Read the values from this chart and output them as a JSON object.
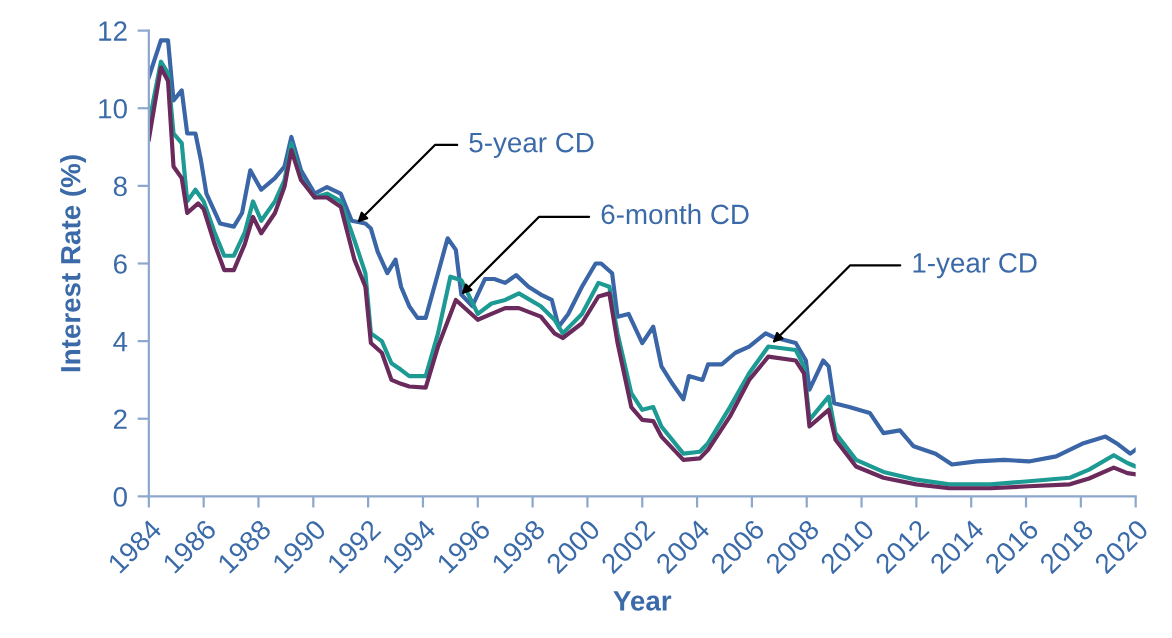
{
  "chart_data": {
    "type": "line",
    "xlabel": "Year",
    "ylabel": "Interest Rate (%)",
    "xlim": [
      1984,
      2020
    ],
    "xticks": [
      1984,
      1986,
      1988,
      1990,
      1992,
      1994,
      1996,
      1998,
      2000,
      2002,
      2004,
      2006,
      2008,
      2010,
      2012,
      2014,
      2016,
      2018,
      2020
    ],
    "ylim": [
      0,
      12
    ],
    "yticks": [
      0,
      2,
      4,
      6,
      8,
      10,
      12
    ],
    "grid": false,
    "marker": "none",
    "line_style": "solid",
    "series": [
      {
        "color": "#3a66a8",
        "x": [
          1984.0,
          1984.44,
          1984.7,
          1984.9,
          1985.2,
          1985.4,
          1985.7,
          1985.9,
          1986.1,
          1986.6,
          1987.1,
          1987.4,
          1987.7,
          1988.1,
          1988.6,
          1988.95,
          1989.2,
          1989.55,
          1990.05,
          1990.5,
          1991.0,
          1991.4,
          1991.9,
          1992.1,
          1992.35,
          1992.7,
          1993.0,
          1993.2,
          1993.5,
          1993.8,
          1994.1,
          1994.55,
          1994.9,
          1995.2,
          1995.4,
          1995.8,
          1996.26,
          1996.6,
          1997.0,
          1997.4,
          1997.85,
          1998.3,
          1998.7,
          1998.95,
          1999.3,
          1999.8,
          2000.3,
          2000.5,
          2000.9,
          2001.1,
          2001.5,
          2002.0,
          2002.4,
          2002.7,
          2003.1,
          2003.5,
          2003.7,
          2004.2,
          2004.4,
          2004.9,
          2005.4,
          2005.9,
          2006.5,
          2006.8,
          2007.6,
          2007.97,
          2008.1,
          2008.6,
          2008.8,
          2009.0,
          2009.55,
          2010.3,
          2010.8,
          2011.4,
          2011.9,
          2012.7,
          2013.3,
          2014.2,
          2015.2,
          2016.1,
          2017.1,
          2018.1,
          2018.9,
          2019.3,
          2019.8,
          2020.0
        ],
        "values": [
          10.8,
          11.75,
          11.75,
          10.2,
          10.46,
          9.35,
          9.35,
          8.66,
          7.8,
          7.03,
          6.95,
          7.3,
          8.4,
          7.9,
          8.2,
          8.5,
          9.26,
          8.4,
          7.8,
          7.97,
          7.8,
          7.1,
          7.03,
          6.9,
          6.3,
          5.75,
          6.1,
          5.4,
          4.9,
          4.6,
          4.6,
          5.75,
          6.65,
          6.35,
          5.2,
          4.9,
          5.6,
          5.6,
          5.5,
          5.7,
          5.4,
          5.2,
          5.06,
          4.37,
          4.7,
          5.4,
          6.0,
          6.0,
          5.75,
          4.63,
          4.7,
          3.95,
          4.37,
          3.35,
          2.9,
          2.5,
          3.1,
          3.0,
          3.4,
          3.4,
          3.7,
          3.86,
          4.2,
          4.1,
          3.95,
          3.5,
          2.75,
          3.5,
          3.35,
          2.4,
          2.3,
          2.15,
          1.63,
          1.7,
          1.29,
          1.1,
          0.82,
          0.9,
          0.94,
          0.9,
          1.03,
          1.37,
          1.54,
          1.37,
          1.1,
          1.2
        ]
      },
      {
        "color": "#1c9a93",
        "x": [
          1984.0,
          1984.44,
          1984.7,
          1984.9,
          1985.2,
          1985.4,
          1985.7,
          1986.0,
          1986.4,
          1986.75,
          1987.1,
          1987.5,
          1987.8,
          1988.1,
          1988.6,
          1988.95,
          1989.2,
          1989.55,
          1990.05,
          1990.5,
          1991.0,
          1991.5,
          1991.9,
          1992.1,
          1992.5,
          1992.85,
          1993.2,
          1993.5,
          1994.1,
          1994.55,
          1995.0,
          1995.4,
          1996.0,
          1996.5,
          1997.0,
          1997.5,
          1998.3,
          1998.8,
          1999.1,
          1999.8,
          2000.4,
          2000.8,
          2001.1,
          2001.6,
          2002.0,
          2002.4,
          2002.7,
          2003.5,
          2004.1,
          2004.4,
          2005.2,
          2005.9,
          2006.6,
          2007.6,
          2007.9,
          2008.1,
          2008.8,
          2009.05,
          2009.8,
          2010.8,
          2012.0,
          2013.2,
          2014.7,
          2016.1,
          2017.6,
          2018.3,
          2019.2,
          2019.7,
          2020.0
        ],
        "values": [
          9.6,
          11.2,
          10.9,
          9.35,
          9.1,
          7.6,
          7.9,
          7.6,
          6.8,
          6.2,
          6.2,
          6.8,
          7.6,
          7.1,
          7.6,
          8.15,
          9.1,
          8.2,
          7.7,
          7.8,
          7.6,
          6.6,
          5.75,
          4.2,
          4.0,
          3.43,
          3.26,
          3.1,
          3.1,
          4.2,
          5.66,
          5.57,
          4.7,
          4.97,
          5.06,
          5.23,
          4.9,
          4.55,
          4.2,
          4.7,
          5.5,
          5.4,
          4.2,
          2.66,
          2.23,
          2.3,
          1.8,
          1.1,
          1.15,
          1.37,
          2.3,
          3.17,
          3.86,
          3.77,
          3.35,
          1.97,
          2.57,
          1.63,
          0.94,
          0.63,
          0.43,
          0.31,
          0.31,
          0.39,
          0.48,
          0.69,
          1.06,
          0.86,
          0.77
        ]
      },
      {
        "color": "#6a2a5c",
        "x": [
          1984.0,
          1984.44,
          1984.7,
          1984.9,
          1985.2,
          1985.4,
          1985.8,
          1986.0,
          1986.4,
          1986.75,
          1987.1,
          1987.5,
          1987.8,
          1988.1,
          1988.6,
          1988.95,
          1989.2,
          1989.55,
          1990.05,
          1990.5,
          1991.0,
          1991.5,
          1991.9,
          1992.1,
          1992.5,
          1992.85,
          1993.2,
          1993.5,
          1994.1,
          1994.55,
          1995.2,
          1996.0,
          1996.5,
          1997.0,
          1997.5,
          1998.3,
          1998.8,
          1999.1,
          1999.8,
          2000.4,
          2000.8,
          2001.1,
          2001.6,
          2002.0,
          2002.4,
          2002.7,
          2003.5,
          2004.1,
          2004.4,
          2005.2,
          2005.9,
          2006.6,
          2007.6,
          2007.9,
          2008.1,
          2008.8,
          2009.05,
          2009.8,
          2010.8,
          2012.0,
          2013.2,
          2014.7,
          2016.1,
          2017.6,
          2018.3,
          2019.2,
          2019.7,
          2020.0
        ],
        "values": [
          9.2,
          11.05,
          10.7,
          8.5,
          8.2,
          7.3,
          7.55,
          7.4,
          6.5,
          5.83,
          5.83,
          6.5,
          7.2,
          6.78,
          7.3,
          7.98,
          8.92,
          8.15,
          7.7,
          7.7,
          7.46,
          6.1,
          5.4,
          3.95,
          3.7,
          3.0,
          2.9,
          2.83,
          2.8,
          3.86,
          5.06,
          4.55,
          4.7,
          4.85,
          4.85,
          4.63,
          4.2,
          4.08,
          4.46,
          5.15,
          5.23,
          3.95,
          2.3,
          1.97,
          1.94,
          1.54,
          0.94,
          0.98,
          1.2,
          2.06,
          3.0,
          3.6,
          3.5,
          3.17,
          1.8,
          2.23,
          1.46,
          0.77,
          0.48,
          0.31,
          0.21,
          0.21,
          0.26,
          0.31,
          0.46,
          0.74,
          0.6,
          0.57
        ]
      }
    ],
    "annotations": [
      {
        "text": "5-year CD",
        "x": 1991.6,
        "y": 7.05
      },
      {
        "text": "6-month CD",
        "x": 1995.4,
        "y": 5.2
      },
      {
        "text": "1-year CD",
        "x": 2006.75,
        "y": 3.95
      }
    ]
  }
}
